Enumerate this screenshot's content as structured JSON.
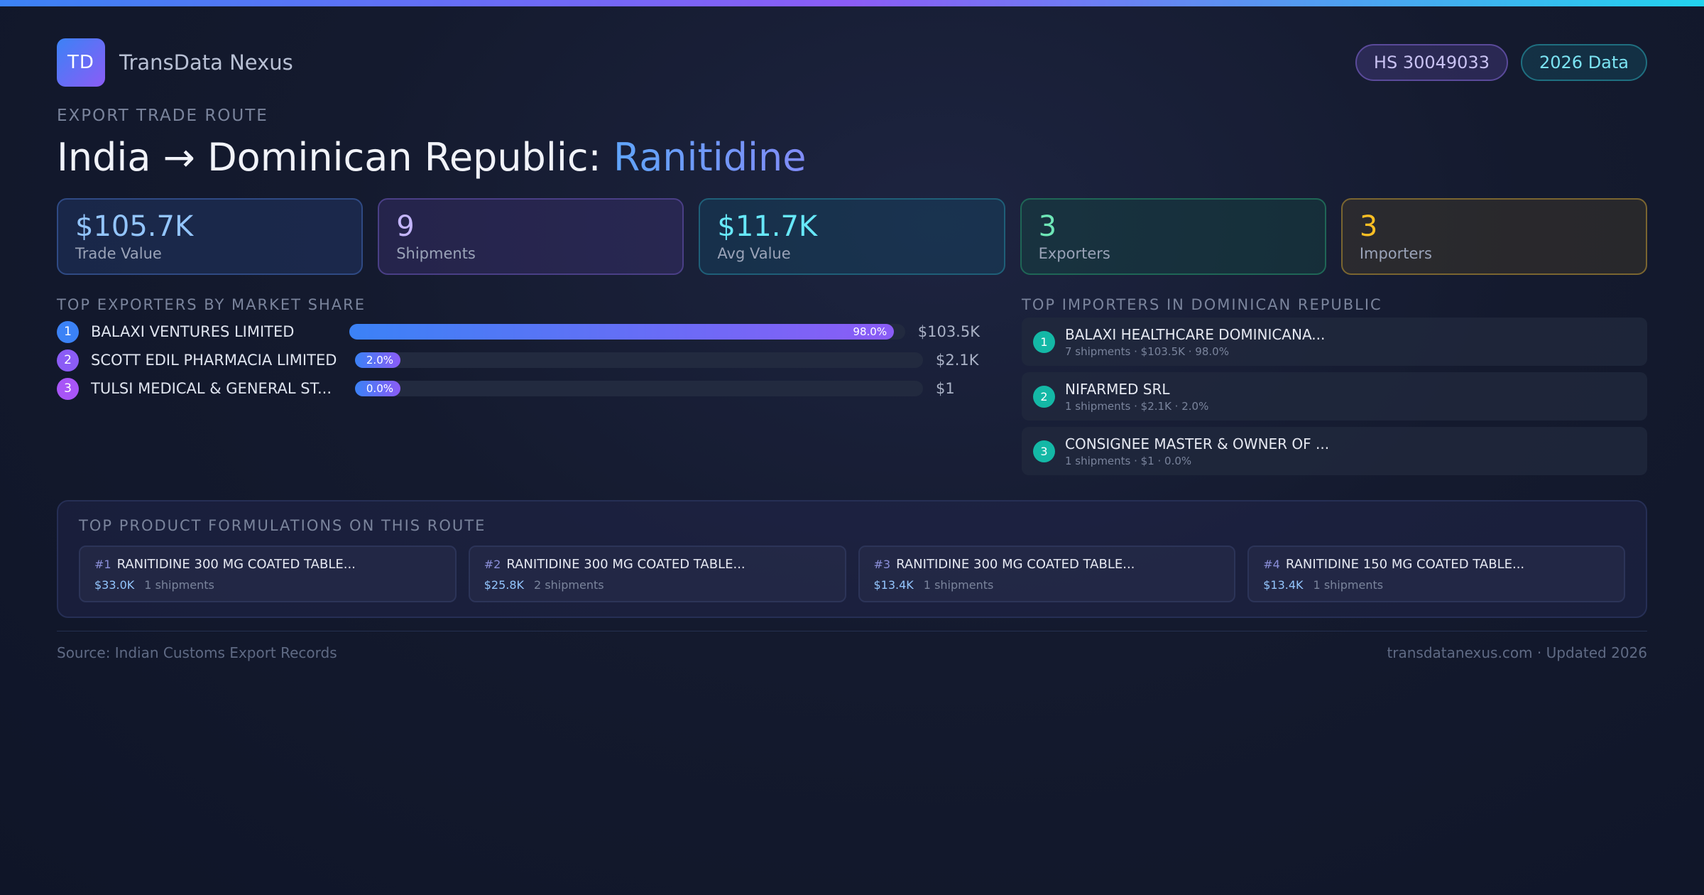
{
  "brand": {
    "logo_text": "TD",
    "name": "TransData Nexus"
  },
  "badges": {
    "hs_code": "HS 30049033",
    "data_year": "2026 Data"
  },
  "eyebrow": "EXPORT TRADE ROUTE",
  "title": {
    "main": "India → Dominican Republic: ",
    "product": "Ranitidine"
  },
  "stats": [
    {
      "value": "$105.7K",
      "label": "Trade Value"
    },
    {
      "value": "9",
      "label": "Shipments"
    },
    {
      "value": "$11.7K",
      "label": "Avg Value"
    },
    {
      "value": "3",
      "label": "Exporters"
    },
    {
      "value": "3",
      "label": "Importers"
    }
  ],
  "exporters": {
    "title": "TOP EXPORTERS BY MARKET SHARE",
    "items": [
      {
        "rank": "1",
        "name": "BALAXI VENTURES LIMITED",
        "share": 98.0,
        "share_label": "98.0%",
        "value": "$103.5K",
        "color": "#3b82f6"
      },
      {
        "rank": "2",
        "name": "SCOTT EDIL PHARMACIA LIMITED",
        "share": 2.0,
        "share_label": "2.0%",
        "value": "$2.1K",
        "color": "#8b5cf6"
      },
      {
        "rank": "3",
        "name": "TULSI MEDICAL & GENERAL ST...",
        "share": 0.0,
        "share_label": "0.0%",
        "value": "$1",
        "color": "#a855f7"
      }
    ]
  },
  "importers": {
    "title": "TOP IMPORTERS IN DOMINICAN REPUBLIC",
    "items": [
      {
        "rank": "1",
        "name": "BALAXI HEALTHCARE DOMINICANA...",
        "meta": "7 shipments · $103.5K · 98.0%"
      },
      {
        "rank": "2",
        "name": "NIFARMED SRL",
        "meta": "1 shipments · $2.1K · 2.0%"
      },
      {
        "rank": "3",
        "name": "CONSIGNEE MASTER & OWNER OF ...",
        "meta": "1 shipments · $1 · 0.0%"
      }
    ]
  },
  "formulations": {
    "title": "TOP PRODUCT FORMULATIONS ON THIS ROUTE",
    "items": [
      {
        "num": "#1",
        "name": "RANITIDINE 300 MG COATED TABLE...",
        "value": "$33.0K",
        "shipments": "1 shipments"
      },
      {
        "num": "#2",
        "name": "RANITIDINE 300 MG COATED TABLE...",
        "value": "$25.8K",
        "shipments": "2 shipments"
      },
      {
        "num": "#3",
        "name": "RANITIDINE 300 MG COATED TABLE...",
        "value": "$13.4K",
        "shipments": "1 shipments"
      },
      {
        "num": "#4",
        "name": "RANITIDINE 150 MG COATED TABLE...",
        "value": "$13.4K",
        "shipments": "1 shipments"
      }
    ]
  },
  "footer": {
    "source": "Source: Indian Customs Export Records",
    "site": "transdatanexus.com · Updated 2026"
  },
  "colors": {
    "accent_blue": "#3b82f6",
    "accent_purple": "#8b5cf6",
    "accent_cyan": "#22d3ee",
    "teal": "#14b8a6"
  }
}
